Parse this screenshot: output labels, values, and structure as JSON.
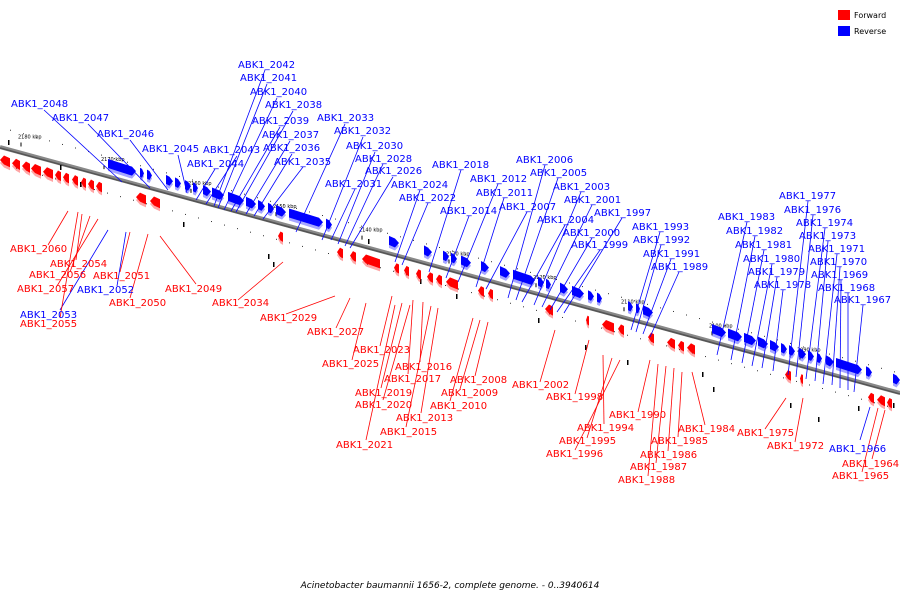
{
  "legend": {
    "forward": {
      "label": "Forward",
      "color": "#ff0000"
    },
    "reverse": {
      "label": "Reverse",
      "color": "#0000ff"
    }
  },
  "caption": "Acinetobacter baumannii 1656-2, complete genome. - 0..3940614",
  "ticks": [
    "2180 kbp",
    "2170 kbp",
    "2160 kbp",
    "2150 kbp",
    "2140 kbp",
    "2130 kbp",
    "2120 kbp",
    "2110 kbp",
    "2100 kbp",
    "2090 kbp"
  ],
  "reverse_labels": [
    "ABK1_2048",
    "ABK1_2047",
    "ABK1_2046",
    "ABK1_2045",
    "ABK1_2044",
    "ABK1_2043",
    "ABK1_2042",
    "ABK1_2041",
    "ABK1_2040",
    "ABK1_2039",
    "ABK1_2038",
    "ABK1_2037",
    "ABK1_2036",
    "ABK1_2035",
    "ABK1_2033",
    "ABK1_2032",
    "ABK1_2031",
    "ABK1_2030",
    "ABK1_2028",
    "ABK1_2026",
    "ABK1_2024",
    "ABK1_2022",
    "ABK1_2018",
    "ABK1_2014",
    "ABK1_2012",
    "ABK1_2011",
    "ABK1_2007",
    "ABK1_2006",
    "ABK1_2005",
    "ABK1_2004",
    "ABK1_2003",
    "ABK1_2001",
    "ABK1_2000",
    "ABK1_1999",
    "ABK1_1997",
    "ABK1_1993",
    "ABK1_1992",
    "ABK1_1991",
    "ABK1_1989",
    "ABK1_1983",
    "ABK1_1982",
    "ABK1_1981",
    "ABK1_1980",
    "ABK1_1979",
    "ABK1_1978",
    "ABK1_1977",
    "ABK1_1976",
    "ABK1_1974",
    "ABK1_1973",
    "ABK1_1971",
    "ABK1_1970",
    "ABK1_1969",
    "ABK1_1968",
    "ABK1_1967",
    "ABK1_2053",
    "ABK1_2052",
    "ABK1_1966"
  ],
  "forward_labels": [
    "ABK1_2060",
    "ABK1_2054",
    "ABK1_2056",
    "ABK1_2051",
    "ABK1_2057",
    "ABK1_2050",
    "ABK1_2055",
    "ABK1_2049",
    "ABK1_2034",
    "ABK1_2029",
    "ABK1_2027",
    "ABK1_2023",
    "ABK1_2025",
    "ABK1_2016",
    "ABK1_2017",
    "ABK1_2019",
    "ABK1_2020",
    "ABK1_2021",
    "ABK1_2015",
    "ABK1_2013",
    "ABK1_2010",
    "ABK1_2009",
    "ABK1_2008",
    "ABK1_2002",
    "ABK1_1998",
    "ABK1_1990",
    "ABK1_1994",
    "ABK1_1995",
    "ABK1_1996",
    "ABK1_1984",
    "ABK1_1985",
    "ABK1_1986",
    "ABK1_1987",
    "ABK1_1988",
    "ABK1_1975",
    "ABK1_1972",
    "ABK1_1964",
    "ABK1_1965"
  ]
}
